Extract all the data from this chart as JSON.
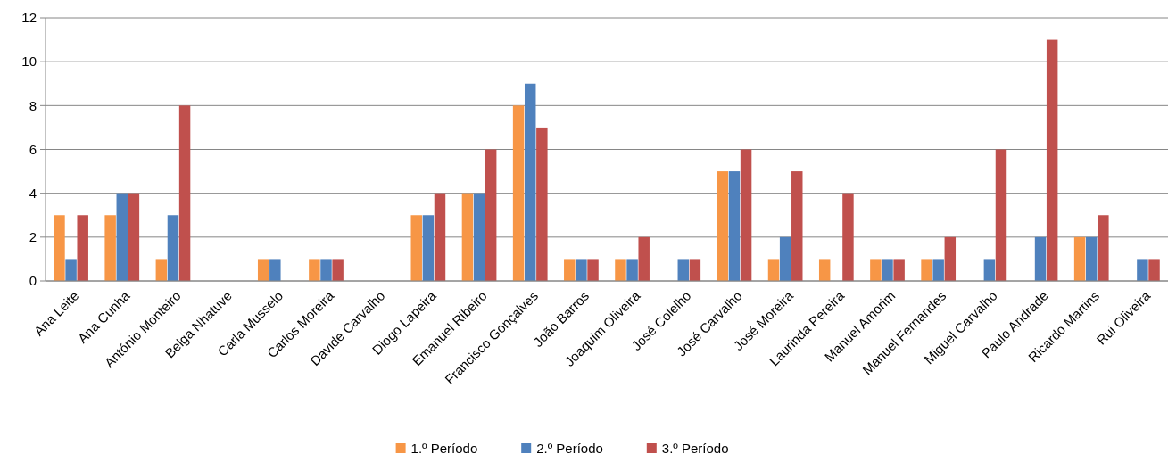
{
  "chart_data": {
    "type": "bar",
    "categories": [
      "Ana Leite",
      "Ana Cunha",
      "António Monteiro",
      "Belga Nhatuve",
      "Carla Musselo",
      "Carlos Moreira",
      "Davide Carvalho",
      "Diogo Lapeira",
      "Emanuel Ribeiro",
      "Francisco Gonçalves",
      "João Barros",
      "Joaquim Oliveira",
      "José Colelho",
      "José Carvalho",
      "José Moreira",
      "Laurinda Pereira",
      "Manuel Amorim",
      "Manuel Fernandes",
      "Miguel Carvalho",
      "Paulo Andrade",
      "Ricardo Martins",
      "Rui Oliveira"
    ],
    "series": [
      {
        "name": "1.º Período",
        "color": "#f79646",
        "values": [
          3,
          3,
          1,
          0,
          1,
          1,
          0,
          3,
          4,
          8,
          1,
          1,
          0,
          5,
          1,
          1,
          1,
          1,
          0,
          0,
          2,
          0
        ]
      },
      {
        "name": "2.º Período",
        "color": "#4f81bd",
        "values": [
          1,
          4,
          3,
          0,
          1,
          1,
          0,
          3,
          4,
          9,
          1,
          1,
          1,
          5,
          2,
          0,
          1,
          1,
          1,
          2,
          2,
          1
        ]
      },
      {
        "name": "3.º Período",
        "color": "#c0504d",
        "values": [
          3,
          4,
          8,
          0,
          0,
          1,
          0,
          4,
          6,
          7,
          1,
          2,
          1,
          6,
          5,
          4,
          1,
          2,
          6,
          11,
          3,
          1
        ]
      }
    ],
    "ylim": [
      0,
      12
    ],
    "yticks": [
      0,
      2,
      4,
      6,
      8,
      10,
      12
    ],
    "grid": "y",
    "legend": "bottom"
  }
}
